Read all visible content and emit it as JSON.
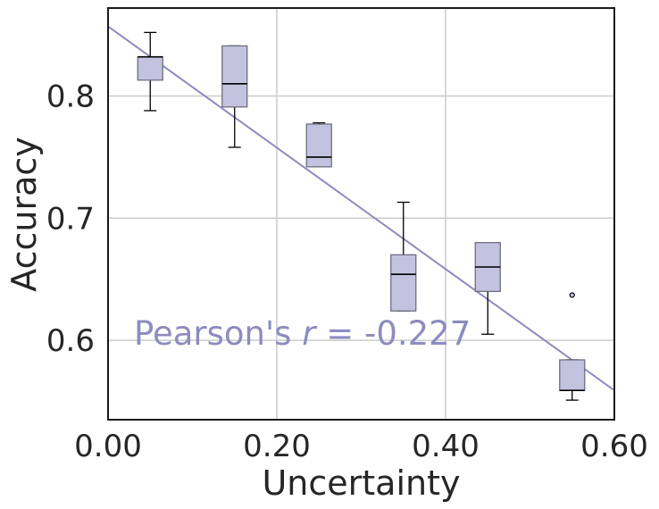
{
  "chart_data": {
    "type": "box",
    "xlabel": "Uncertainty",
    "ylabel": "Accuracy",
    "xlim": [
      0.0,
      0.6
    ],
    "ylim": [
      0.535,
      0.872
    ],
    "x_ticks": [
      0.0,
      0.2,
      0.4,
      0.6
    ],
    "x_tick_labels": [
      "0.00",
      "0.20",
      "0.40",
      "0.60"
    ],
    "y_ticks": [
      0.6,
      0.7,
      0.8
    ],
    "y_tick_labels": [
      "0.6",
      "0.7",
      "0.8"
    ],
    "grid": true,
    "boxes": [
      {
        "x": 0.05,
        "whisker_low": 0.788,
        "q1": 0.813,
        "median": 0.832,
        "q3": 0.832,
        "whisker_high": 0.852,
        "outliers": []
      },
      {
        "x": 0.15,
        "whisker_low": 0.758,
        "q1": 0.791,
        "median": 0.81,
        "q3": 0.841,
        "whisker_high": 0.841,
        "outliers": []
      },
      {
        "x": 0.25,
        "whisker_low": 0.742,
        "q1": 0.742,
        "median": 0.75,
        "q3": 0.777,
        "whisker_high": 0.778,
        "outliers": []
      },
      {
        "x": 0.35,
        "whisker_low": 0.624,
        "q1": 0.624,
        "median": 0.654,
        "q3": 0.67,
        "whisker_high": 0.713,
        "outliers": []
      },
      {
        "x": 0.45,
        "whisker_low": 0.605,
        "q1": 0.64,
        "median": 0.66,
        "q3": 0.68,
        "whisker_high": 0.68,
        "outliers": []
      },
      {
        "x": 0.55,
        "whisker_low": 0.551,
        "q1": 0.559,
        "median": 0.559,
        "q3": 0.584,
        "whisker_high": 0.584,
        "outliers": [
          0.637
        ]
      }
    ],
    "trend_line": {
      "x": [
        0.0,
        0.6
      ],
      "y": [
        0.857,
        0.559
      ]
    },
    "annotation": {
      "prefix": "Pearson's ",
      "symbol": "r",
      "suffix": " = -0.227"
    },
    "colors": {
      "box_fill": "#c3c3e0",
      "box_edge": "#6f6f80",
      "line": "#8c8cbf",
      "grid": "#cccccc",
      "text": "#262626"
    }
  }
}
